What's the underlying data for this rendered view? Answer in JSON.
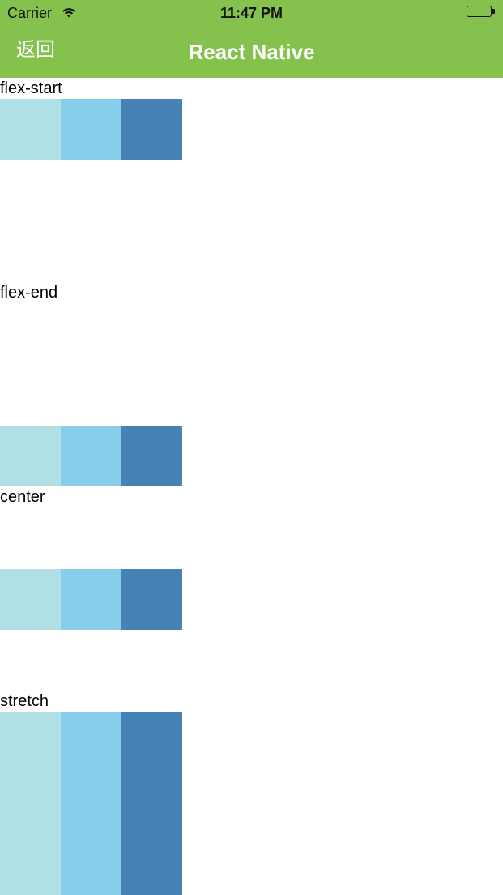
{
  "status_bar": {
    "carrier": "Carrier",
    "time": "11:47 PM",
    "wifi_icon": "wifi-icon",
    "battery_icon": "battery-icon"
  },
  "nav": {
    "back_label": "返回",
    "title": "React Native"
  },
  "colors": {
    "nav_background": "#84c24d",
    "swatch_light": "#b0dfe5",
    "swatch_mid": "#87ceeb",
    "swatch_dark": "#4682b4"
  },
  "sections": [
    {
      "label": "flex-start"
    },
    {
      "label": "flex-end"
    },
    {
      "label": "center"
    },
    {
      "label": "stretch"
    }
  ]
}
